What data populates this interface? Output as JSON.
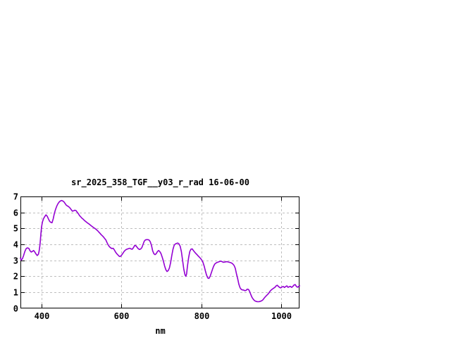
{
  "chart_data": {
    "type": "line",
    "title": "sr_2025_358_TGF__y03_r_rad 16-06-00",
    "xlabel": "nm",
    "ylabel": "",
    "xlim": [
      347,
      1046
    ],
    "ylim": [
      0,
      7
    ],
    "xticks": [
      400,
      600,
      800,
      1000
    ],
    "xtick_labels": [
      "400",
      "600",
      "800",
      "1000"
    ],
    "yticks": [
      0,
      1,
      2,
      3,
      4,
      5,
      6,
      7
    ],
    "ytick_labels": [
      "0",
      "1",
      "2",
      "3",
      "4",
      "5",
      "6",
      "7"
    ],
    "grid": true,
    "grid_style": "dashed",
    "legend": "none",
    "line_color": "#9400d3",
    "grid_color": "#bebebe",
    "axis_color": "#000000",
    "background_color": "#ffffff",
    "series": [
      {
        "x": [
          347,
          349,
          352,
          355,
          358,
          361,
          364,
          368,
          371,
          374,
          377,
          380,
          383,
          386,
          389,
          392,
          394,
          396,
          398,
          400,
          402,
          405,
          408,
          411,
          414,
          417,
          420,
          423,
          426,
          429,
          432,
          435,
          438,
          441,
          444,
          447,
          450,
          453,
          456,
          459,
          462,
          465,
          468,
          471,
          474,
          477,
          480,
          483,
          486,
          489,
          492,
          495,
          498,
          501,
          504,
          507,
          510,
          513,
          516,
          519,
          522,
          525,
          528,
          531,
          534,
          537,
          540,
          543,
          546,
          549,
          552,
          555,
          558,
          561,
          564,
          567,
          570,
          573,
          576,
          579,
          582,
          585,
          588,
          591,
          594,
          597,
          600,
          603,
          606,
          609,
          612,
          615,
          618,
          621,
          624,
          627,
          630,
          633,
          636,
          639,
          642,
          645,
          648,
          651,
          654,
          657,
          660,
          663,
          666,
          669,
          672,
          675,
          678,
          681,
          684,
          687,
          690,
          693,
          696,
          699,
          702,
          705,
          708,
          711,
          714,
          717,
          720,
          723,
          726,
          729,
          732,
          735,
          738,
          741,
          744,
          747,
          750,
          753,
          756,
          759,
          761,
          763,
          765,
          768,
          771,
          774,
          777,
          780,
          783,
          786,
          789,
          792,
          795,
          798,
          801,
          804,
          807,
          810,
          813,
          816,
          819,
          822,
          825,
          828,
          831,
          834,
          837,
          840,
          843,
          846,
          849,
          852,
          855,
          858,
          861,
          864,
          867,
          870,
          873,
          876,
          879,
          882,
          885,
          888,
          891,
          894,
          897,
          900,
          903,
          906,
          909,
          912,
          915,
          918,
          921,
          924,
          927,
          930,
          933,
          936,
          939,
          942,
          945,
          948,
          951,
          954,
          957,
          960,
          963,
          966,
          969,
          972,
          975,
          978,
          981,
          984,
          987,
          990,
          993,
          996,
          999,
          1002,
          1005,
          1008,
          1011,
          1014,
          1017,
          1020,
          1023,
          1026,
          1029,
          1032,
          1035,
          1038,
          1041,
          1044,
          1046
        ],
        "y": [
          3.15,
          3.02,
          3.1,
          3.3,
          3.55,
          3.72,
          3.78,
          3.75,
          3.6,
          3.52,
          3.56,
          3.62,
          3.52,
          3.4,
          3.3,
          3.38,
          3.6,
          4.0,
          4.6,
          5.1,
          5.4,
          5.62,
          5.75,
          5.85,
          5.76,
          5.6,
          5.45,
          5.38,
          5.35,
          5.6,
          5.95,
          6.2,
          6.4,
          6.55,
          6.65,
          6.72,
          6.75,
          6.72,
          6.66,
          6.55,
          6.45,
          6.4,
          6.35,
          6.28,
          6.18,
          6.08,
          6.1,
          6.14,
          6.12,
          6.02,
          5.92,
          5.8,
          5.72,
          5.64,
          5.58,
          5.5,
          5.44,
          5.38,
          5.32,
          5.27,
          5.21,
          5.15,
          5.09,
          5.04,
          4.99,
          4.93,
          4.86,
          4.78,
          4.7,
          4.61,
          4.54,
          4.46,
          4.37,
          4.27,
          4.1,
          3.95,
          3.85,
          3.78,
          3.74,
          3.76,
          3.66,
          3.52,
          3.42,
          3.34,
          3.26,
          3.24,
          3.32,
          3.42,
          3.54,
          3.63,
          3.68,
          3.71,
          3.74,
          3.76,
          3.71,
          3.7,
          3.8,
          3.93,
          3.92,
          3.82,
          3.73,
          3.68,
          3.71,
          3.8,
          4.0,
          4.2,
          4.28,
          4.3,
          4.3,
          4.27,
          4.17,
          3.95,
          3.6,
          3.42,
          3.36,
          3.42,
          3.55,
          3.62,
          3.55,
          3.42,
          3.2,
          2.95,
          2.65,
          2.42,
          2.3,
          2.36,
          2.52,
          2.85,
          3.3,
          3.7,
          3.95,
          4.03,
          4.06,
          4.08,
          4.03,
          3.88,
          3.55,
          3.0,
          2.45,
          2.1,
          2.0,
          2.15,
          2.6,
          3.15,
          3.55,
          3.7,
          3.72,
          3.62,
          3.52,
          3.44,
          3.36,
          3.28,
          3.2,
          3.12,
          3.02,
          2.88,
          2.65,
          2.35,
          2.08,
          1.9,
          1.87,
          2.0,
          2.22,
          2.45,
          2.65,
          2.78,
          2.84,
          2.88,
          2.9,
          2.93,
          2.95,
          2.92,
          2.88,
          2.89,
          2.91,
          2.92,
          2.9,
          2.88,
          2.86,
          2.83,
          2.77,
          2.68,
          2.5,
          2.15,
          1.85,
          1.5,
          1.28,
          1.18,
          1.15,
          1.14,
          1.1,
          1.12,
          1.2,
          1.18,
          1.05,
          0.85,
          0.68,
          0.56,
          0.48,
          0.44,
          0.42,
          0.41,
          0.42,
          0.44,
          0.47,
          0.53,
          0.63,
          0.72,
          0.8,
          0.87,
          0.96,
          1.07,
          1.15,
          1.21,
          1.26,
          1.31,
          1.4,
          1.44,
          1.36,
          1.3,
          1.28,
          1.34,
          1.36,
          1.3,
          1.36,
          1.4,
          1.31,
          1.35,
          1.37,
          1.31,
          1.37,
          1.46,
          1.48,
          1.36,
          1.32,
          1.38,
          1.4
        ]
      }
    ]
  }
}
